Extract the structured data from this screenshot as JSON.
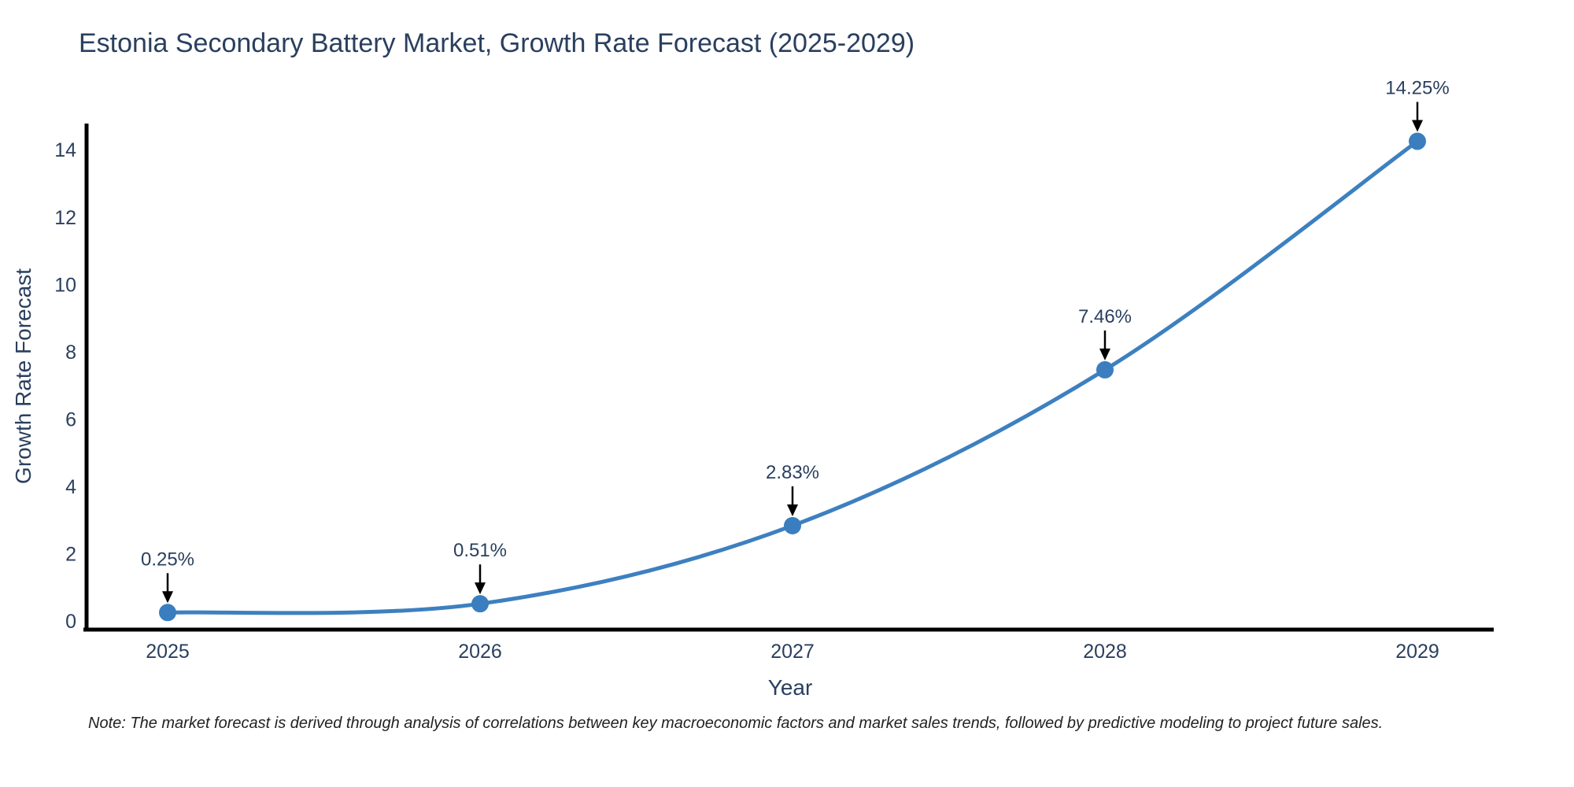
{
  "title": "Estonia Secondary Battery Market, Growth Rate Forecast (2025-2029)",
  "note": "Note: The market forecast is derived through analysis of correlations between key macroeconomic factors and market sales trends, followed by predictive modeling to project future sales.",
  "colors": {
    "line": "#3d80c0",
    "marker": "#3a7ebf",
    "axis": "#000000",
    "text": "#2a3f5f",
    "arrow": "#000000"
  },
  "chart_data": {
    "type": "line",
    "title": "Estonia Secondary Battery Market, Growth Rate Forecast (2025-2029)",
    "xlabel": "Year",
    "ylabel": "Growth Rate Forecast",
    "categories": [
      "2025",
      "2026",
      "2027",
      "2028",
      "2029"
    ],
    "values": [
      0.25,
      0.51,
      2.83,
      7.46,
      14.25
    ],
    "point_labels": [
      "0.25%",
      "0.51%",
      "2.83%",
      "7.46%",
      "14.25%"
    ],
    "yticks": [
      0,
      2,
      4,
      6,
      8,
      10,
      12,
      14
    ],
    "ylim": [
      0,
      15
    ],
    "line_shape": "spline",
    "markers": true,
    "grid": false,
    "legend": "none",
    "annotation_style": "value labels above points with downward black arrows"
  }
}
